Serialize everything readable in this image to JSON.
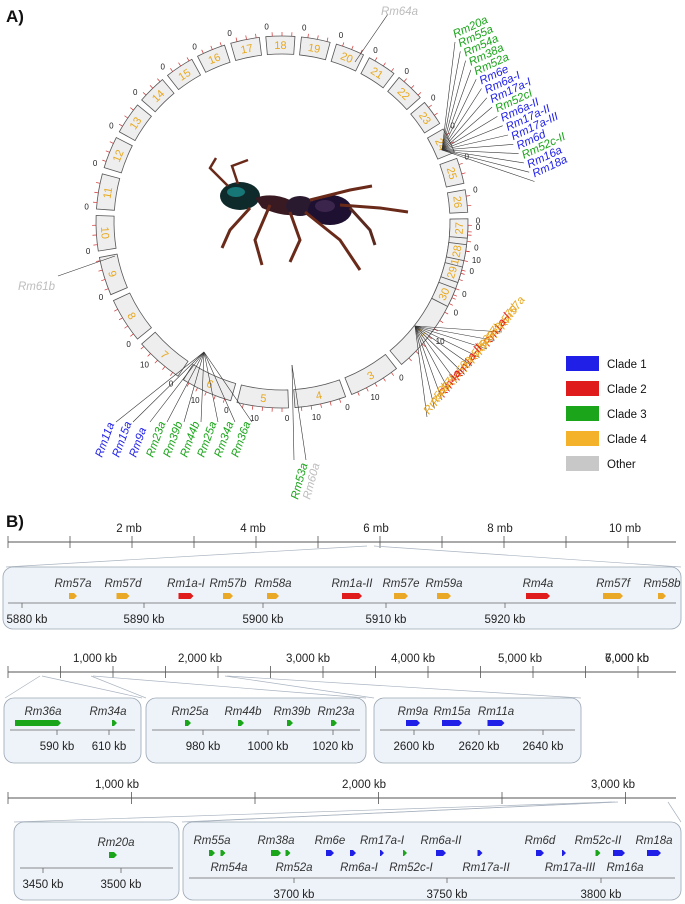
{
  "panels": {
    "a": "A)",
    "b": "B)"
  },
  "legend": [
    {
      "label": "Clade 1",
      "color": "#1f1fe8"
    },
    {
      "label": "Clade 2",
      "color": "#e01b1b"
    },
    {
      "label": "Clade 3",
      "color": "#1aa51a"
    },
    {
      "label": "Clade 4",
      "color": "#f4b12a"
    },
    {
      "label": "Other",
      "color": "#c8c8c8"
    }
  ],
  "colors": {
    "clade1": "#1f1fe8",
    "clade2": "#e01b1b",
    "clade3": "#1aa51a",
    "clade4": "#e9a825",
    "other": "#bdbdbd",
    "ring": "#eeeeee",
    "panel_bg": "#eef3f9"
  },
  "chromosomes": [
    "1",
    "2",
    "3",
    "4",
    "5",
    "6",
    "7",
    "8",
    "9",
    "10",
    "11",
    "12",
    "13",
    "14",
    "15",
    "16",
    "17",
    "18",
    "19",
    "20",
    "21",
    "22",
    "23",
    "24",
    "25",
    "26",
    "27",
    "28",
    "29",
    "30"
  ],
  "ring_tick_labels": {
    "zero": "0",
    "ten": "10"
  },
  "circle_labels": {
    "rm64a": {
      "text": "Rm64a",
      "clade": "other"
    },
    "rm61b": {
      "text": "Rm61b",
      "clade": "other"
    },
    "cluster_top": [
      {
        "text": "Rm20a",
        "clade": "clade3"
      },
      {
        "text": "Rm55a",
        "clade": "clade3"
      },
      {
        "text": "Rm54a",
        "clade": "clade3"
      },
      {
        "text": "Rm38a",
        "clade": "clade3"
      },
      {
        "text": "Rm52a",
        "clade": "clade3"
      },
      {
        "text": "Rm6e",
        "clade": "clade1"
      },
      {
        "text": "Rm6a-I",
        "clade": "clade1"
      },
      {
        "text": "Rm17a-I",
        "clade": "clade1"
      },
      {
        "text": "Rm52cI",
        "clade": "clade3"
      },
      {
        "text": "Rm6a-II",
        "clade": "clade1"
      },
      {
        "text": "Rm17a-II",
        "clade": "clade1"
      },
      {
        "text": "Rm17a-III",
        "clade": "clade1"
      },
      {
        "text": "Rm6d",
        "clade": "clade1"
      },
      {
        "text": "Rm52c-II",
        "clade": "clade3"
      },
      {
        "text": "Rm16a",
        "clade": "clade1"
      },
      {
        "text": "Rm18a",
        "clade": "clade1"
      }
    ],
    "cluster_chr2": [
      {
        "text": "Rm57a",
        "clade": "clade4"
      },
      {
        "text": "Rm57d",
        "clade": "clade4"
      },
      {
        "text": "Rm1a-I",
        "clade": "clade2"
      },
      {
        "text": "Rm57b",
        "clade": "clade4"
      },
      {
        "text": "Rm58a",
        "clade": "clade4"
      },
      {
        "text": "Rm57e",
        "clade": "clade4"
      },
      {
        "text": "Rm1a-II",
        "clade": "clade2"
      },
      {
        "text": "Rm59a",
        "clade": "clade4"
      },
      {
        "text": "Rm4a",
        "clade": "clade2"
      },
      {
        "text": "Rm57f",
        "clade": "clade4"
      },
      {
        "text": "Rm58b",
        "clade": "clade4"
      }
    ],
    "cluster_chr7": [
      {
        "text": "Rm11a",
        "clade": "clade1"
      },
      {
        "text": "Rm15a",
        "clade": "clade1"
      },
      {
        "text": "Rm9a",
        "clade": "clade1"
      },
      {
        "text": "Rm23a",
        "clade": "clade3"
      },
      {
        "text": "Rm39b",
        "clade": "clade3"
      },
      {
        "text": "Rm44b",
        "clade": "clade3"
      },
      {
        "text": "Rm25a",
        "clade": "clade3"
      },
      {
        "text": "Rm34a",
        "clade": "clade3"
      },
      {
        "text": "Rm36a",
        "clade": "clade3"
      }
    ],
    "cluster_chr5": [
      {
        "text": "Rm53a",
        "clade": "clade3"
      },
      {
        "text": "Rm60a",
        "clade": "other"
      }
    ]
  },
  "panel_b": {
    "row1": {
      "axis_ticks": [
        "2 mb",
        "4 mb",
        "6 mb",
        "8 mb",
        "10 mb"
      ],
      "genes": [
        {
          "name": "Rm57a",
          "clade": "clade4"
        },
        {
          "name": "Rm57d",
          "clade": "clade4"
        },
        {
          "name": "Rm1a-I",
          "clade": "clade2"
        },
        {
          "name": "Rm57b",
          "clade": "clade4"
        },
        {
          "name": "Rm58a",
          "clade": "clade4"
        },
        {
          "name": "Rm1a-II",
          "clade": "clade2"
        },
        {
          "name": "Rm57e",
          "clade": "clade4"
        },
        {
          "name": "Rm59a",
          "clade": "clade4"
        },
        {
          "name": "Rm4a",
          "clade": "clade2"
        },
        {
          "name": "Rm57f",
          "clade": "clade4"
        },
        {
          "name": "Rm58b",
          "clade": "clade4"
        }
      ],
      "zoom_ticks": [
        "5880 kb",
        "5890 kb",
        "5900 kb",
        "5910 kb",
        "5920 kb"
      ]
    },
    "row2": {
      "axis_ticks": [
        "1,000 kb",
        "2,000 kb",
        "3,000 kb",
        "4,000 kb",
        "5,000 kb",
        "6,000 kb",
        "7,000 kb"
      ],
      "box1": {
        "genes": [
          {
            "name": "Rm36a",
            "clade": "clade3"
          },
          {
            "name": "Rm34a",
            "clade": "clade3"
          }
        ],
        "ticks": [
          "590 kb",
          "610 kb"
        ]
      },
      "box2": {
        "genes": [
          {
            "name": "Rm25a",
            "clade": "clade3"
          },
          {
            "name": "Rm44b",
            "clade": "clade3"
          },
          {
            "name": "Rm39b",
            "clade": "clade3"
          },
          {
            "name": "Rm23a",
            "clade": "clade3"
          }
        ],
        "ticks": [
          "980 kb",
          "1000 kb",
          "1020 kb"
        ]
      },
      "box3": {
        "genes": [
          {
            "name": "Rm9a",
            "clade": "clade1"
          },
          {
            "name": "Rm15a",
            "clade": "clade1"
          },
          {
            "name": "Rm11a",
            "clade": "clade1"
          }
        ],
        "ticks": [
          "2600 kb",
          "2620 kb",
          "2640 kb"
        ]
      }
    },
    "row3": {
      "axis_ticks": [
        "1,000 kb",
        "2,000 kb",
        "3,000 kb"
      ],
      "box1": {
        "genes": [
          {
            "name": "Rm20a",
            "clade": "clade3"
          }
        ],
        "ticks": [
          "3450 kb",
          "3500 kb"
        ]
      },
      "box2": {
        "genes_top": [
          {
            "name": "Rm55a",
            "clade": "clade3"
          },
          {
            "name": "Rm38a",
            "clade": "clade3"
          },
          {
            "name": "Rm6e",
            "clade": "clade1"
          },
          {
            "name": "Rm17a-I",
            "clade": "clade1"
          },
          {
            "name": "Rm6a-II",
            "clade": "clade1"
          },
          {
            "name": "Rm6d",
            "clade": "clade1"
          },
          {
            "name": "Rm52c-II",
            "clade": "clade3"
          },
          {
            "name": "Rm18a",
            "clade": "clade1"
          }
        ],
        "genes_bottom": [
          {
            "name": "Rm54a",
            "clade": "clade3"
          },
          {
            "name": "Rm52a",
            "clade": "clade3"
          },
          {
            "name": "Rm6a-I",
            "clade": "clade1"
          },
          {
            "name": "Rm52c-I",
            "clade": "clade3"
          },
          {
            "name": "Rm17a-II",
            "clade": "clade1"
          },
          {
            "name": "Rm17a-III",
            "clade": "clade1"
          },
          {
            "name": "Rm16a",
            "clade": "clade1"
          }
        ],
        "ticks": [
          "3700 kb",
          "3750 kb",
          "3800 kb"
        ]
      }
    }
  }
}
